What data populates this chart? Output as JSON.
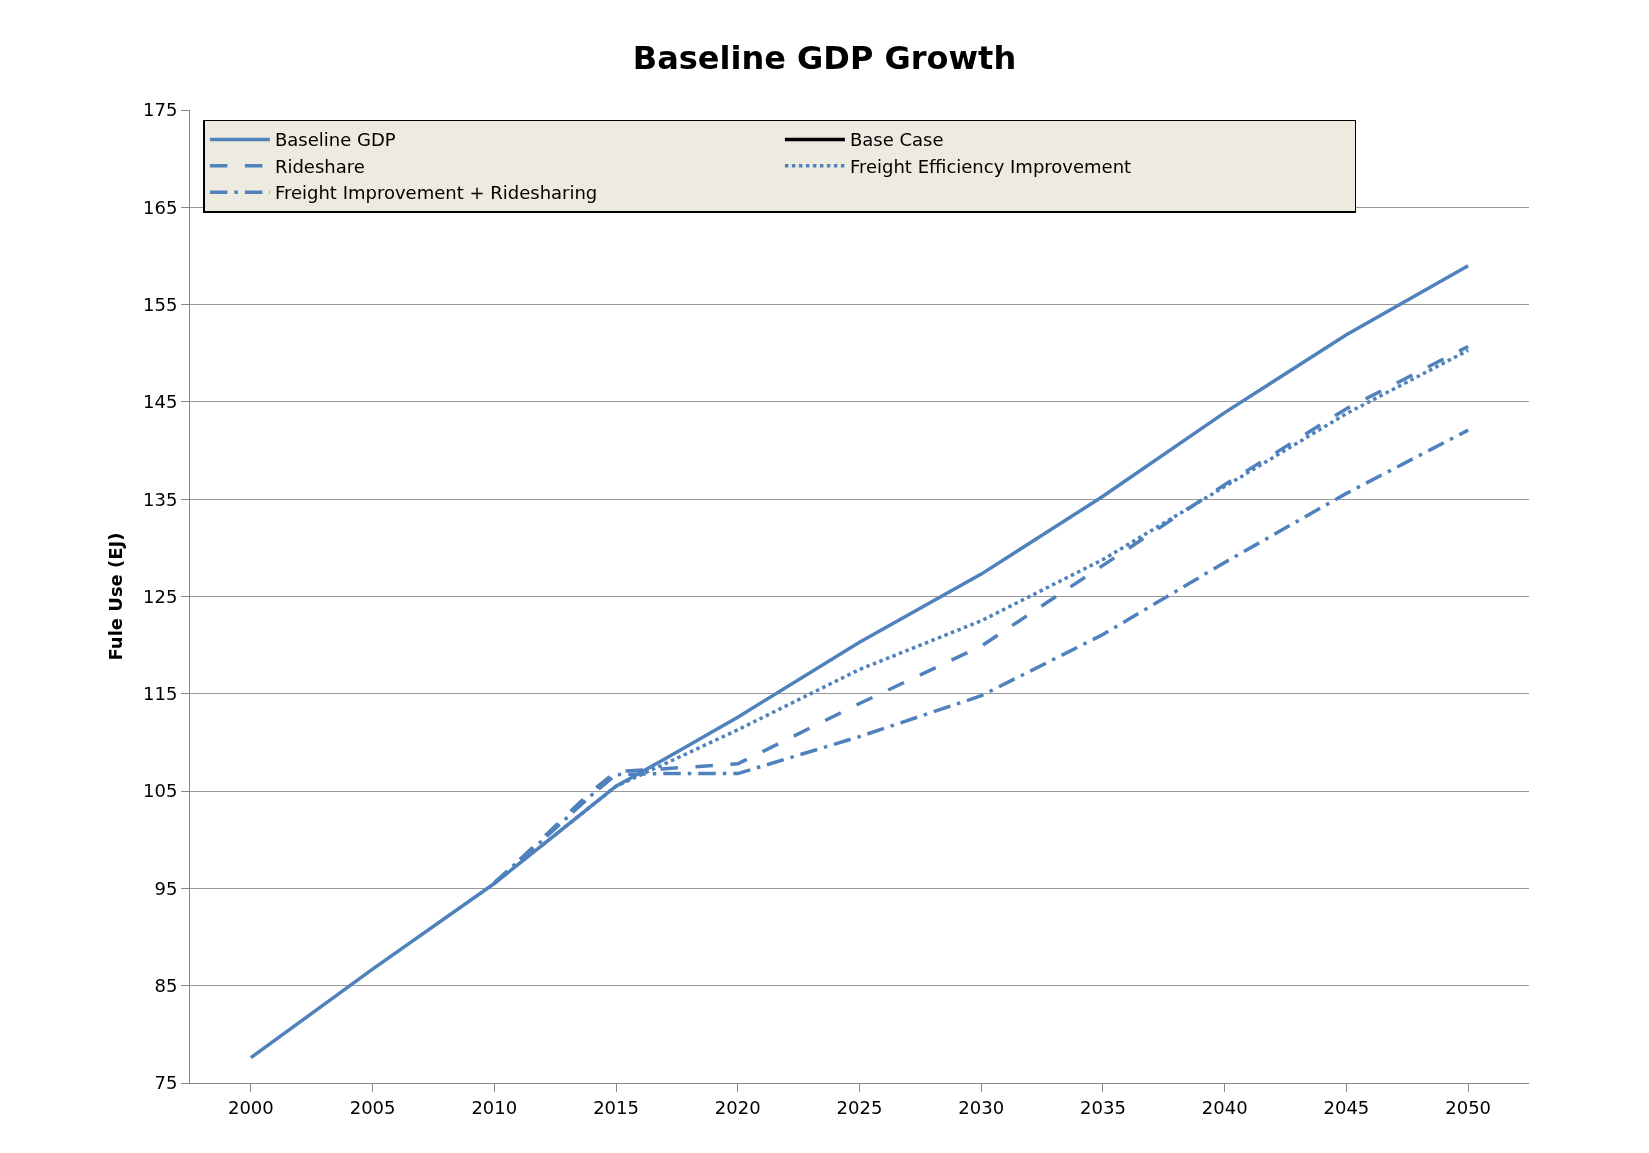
{
  "chart_data": {
    "type": "line",
    "title": "Baseline GDP Growth",
    "ylabel": "Fule Use (EJ)",
    "x": [
      2000,
      2005,
      2010,
      2012,
      2014,
      2015,
      2017,
      2020,
      2025,
      2030,
      2035,
      2040,
      2045,
      2050
    ],
    "xlim": [
      1997.5,
      2052.5
    ],
    "xticks": [
      2000,
      2005,
      2010,
      2015,
      2020,
      2025,
      2030,
      2035,
      2040,
      2045,
      2050
    ],
    "ylim": [
      75,
      175
    ],
    "yticks": [
      75,
      85,
      95,
      105,
      115,
      125,
      135,
      145,
      155,
      165,
      175
    ],
    "grid": "y",
    "legend": "top left",
    "marker": "none",
    "series": [
      {
        "name": "Baseline GDP",
        "color": "#4f81bd",
        "line_style": "solid",
        "values": [
          77.6,
          86.7,
          95.5,
          99.5,
          103.5,
          105.5,
          108.3,
          112.6,
          120.3,
          127.3,
          135.3,
          143.9,
          151.9,
          159.0
        ]
      },
      {
        "name": "Base Case",
        "color": "#000000",
        "line_style": "solid",
        "values": [
          null,
          null,
          null,
          null,
          null,
          null,
          null,
          null,
          null,
          null,
          null,
          null,
          null,
          null
        ]
      },
      {
        "name": "Rideshare",
        "color": "#4f81bd",
        "line_style": "dashed",
        "values": [
          null,
          null,
          95.5,
          100.2,
          105.0,
          107.0,
          107.3,
          107.8,
          114.0,
          119.9,
          128.2,
          136.5,
          144.3,
          150.7
        ]
      },
      {
        "name": "Freight Efficiency Improvement",
        "color": "#4f81bd",
        "line_style": "dotted",
        "values": [
          null,
          null,
          null,
          99.5,
          103.5,
          105.5,
          107.8,
          111.3,
          117.5,
          122.5,
          128.8,
          136.3,
          143.8,
          150.3
        ]
      },
      {
        "name": "Freight Improvement + Ridesharing",
        "color": "#4f81bd",
        "line_style": "dashdot",
        "values": [
          null,
          null,
          95.6,
          100.0,
          104.6,
          106.7,
          106.8,
          106.8,
          110.6,
          114.8,
          121.1,
          128.5,
          135.6,
          142.1
        ]
      }
    ]
  }
}
